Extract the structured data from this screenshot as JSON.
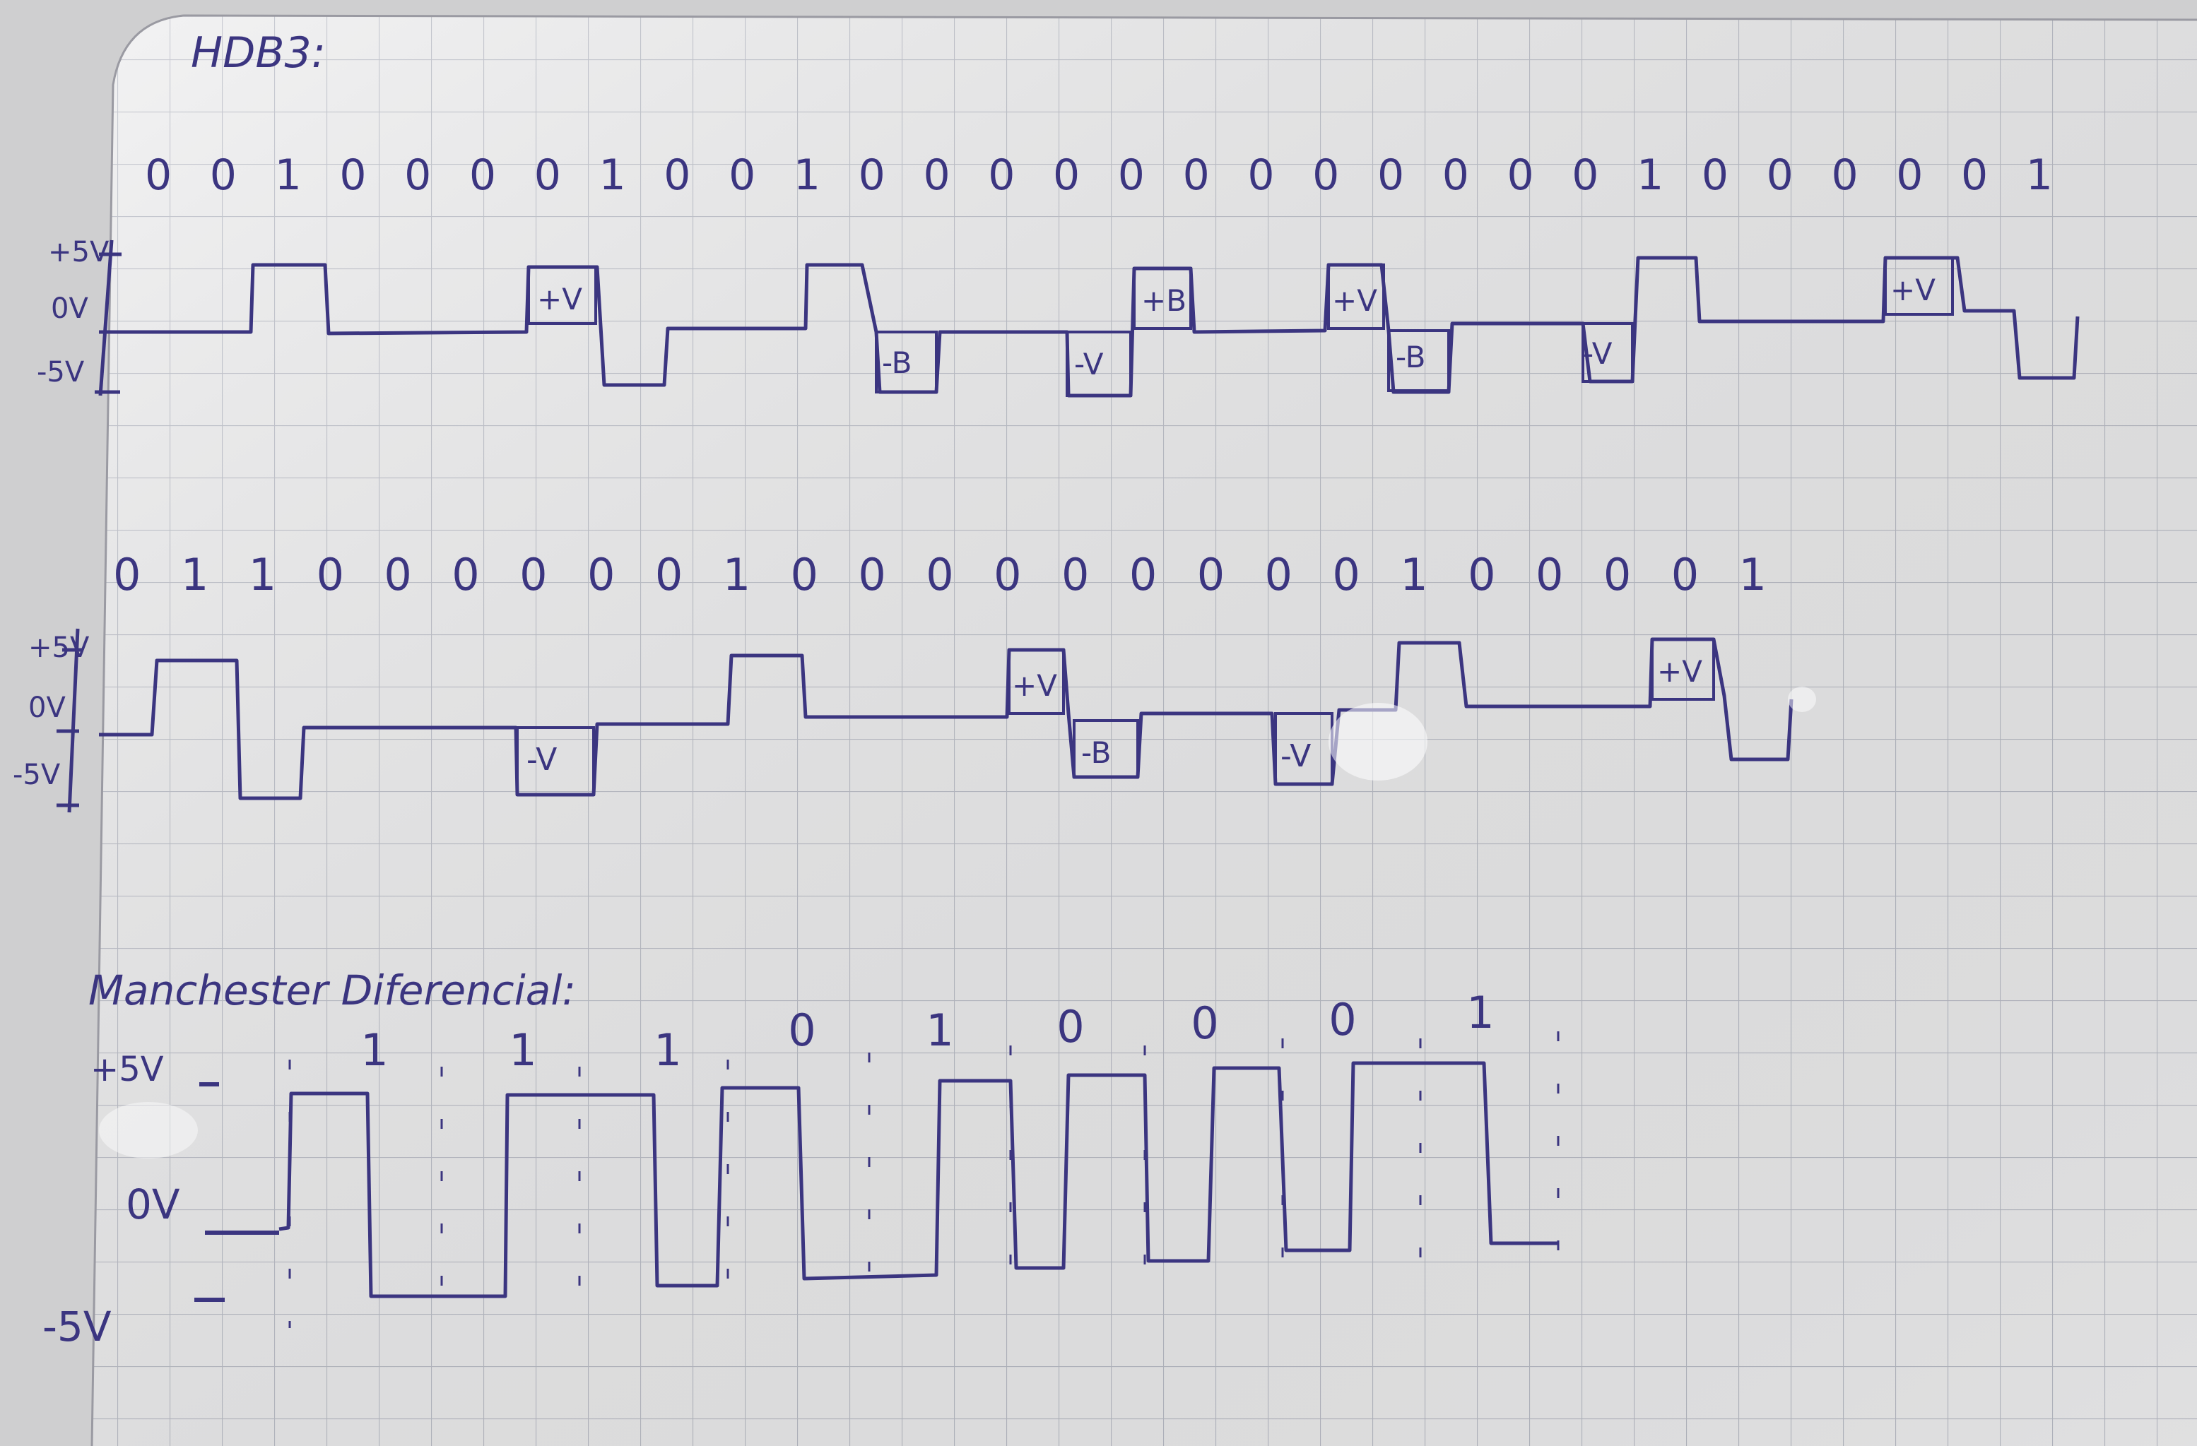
{
  "title": "HDB3:",
  "colors": {
    "ink": "#3b3580",
    "grid": "#b9bcc6",
    "paper": "#eeeeef",
    "background": "#cfcfd0"
  },
  "hdb3_upper": {
    "bits": "0 0 1 0 0 0 0 1 0 0 1 0 0 0 0 0 0 0 0 0 0 0 0 1 0 0 0 0 0 1",
    "axis": {
      "plus": "+5V",
      "zero": "0V",
      "minus": "-5V"
    },
    "pulse_labels": [
      "+V",
      "-B",
      "-V",
      "+B",
      "+V",
      "-B",
      "-V",
      "+V"
    ]
  },
  "hdb3_lower": {
    "bits": "0 1 1 0 0 0 0 0 0 1 0 0 0 0 0 0 0 0 0 1 0 0 0 0 1",
    "axis": {
      "plus": "+5V",
      "zero": "0V",
      "minus": "-5V"
    },
    "pulse_labels": [
      "-V",
      "+V",
      "-B",
      "-V",
      "+V"
    ]
  },
  "manchester": {
    "title": "Manchester Diferencial:",
    "bits": [
      "1",
      "1",
      "1",
      "0",
      "1",
      "0",
      "0",
      "0",
      "1"
    ],
    "axis": {
      "plus": "+5V",
      "zero": "0V",
      "minus": "-5V"
    }
  }
}
